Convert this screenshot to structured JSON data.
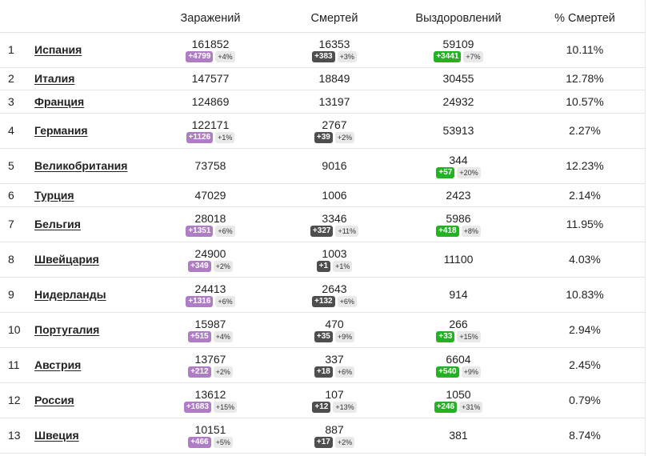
{
  "header": {
    "cases": "Заражений",
    "deaths": "Смертей",
    "recovered": "Выздоровлений",
    "pct": "% Смертей"
  },
  "rows": [
    {
      "rank": "1",
      "country": "Испания",
      "cases": "161852",
      "cases_new": "+4799",
      "cases_pct": "+4%",
      "deaths": "16353",
      "deaths_new": "+383",
      "deaths_pct": "+3%",
      "rec": "59109",
      "rec_new": "+3441",
      "rec_pct": "+7%",
      "pct": "10.11%"
    },
    {
      "rank": "2",
      "country": "Италия",
      "cases": "147577",
      "deaths": "18849",
      "rec": "30455",
      "pct": "12.78%"
    },
    {
      "rank": "3",
      "country": "Франция",
      "cases": "124869",
      "deaths": "13197",
      "rec": "24932",
      "pct": "10.57%"
    },
    {
      "rank": "4",
      "country": "Германия",
      "cases": "122171",
      "cases_new": "+1126",
      "cases_pct": "+1%",
      "deaths": "2767",
      "deaths_new": "+39",
      "deaths_pct": "+2%",
      "rec": "53913",
      "pct": "2.27%"
    },
    {
      "rank": "5",
      "country": "Великобритания",
      "cases": "73758",
      "deaths": "9016",
      "rec": "344",
      "rec_new": "+57",
      "rec_pct": "+20%",
      "pct": "12.23%"
    },
    {
      "rank": "6",
      "country": "Турция",
      "cases": "47029",
      "deaths": "1006",
      "rec": "2423",
      "pct": "2.14%"
    },
    {
      "rank": "7",
      "country": "Бельгия",
      "cases": "28018",
      "cases_new": "+1351",
      "cases_pct": "+6%",
      "deaths": "3346",
      "deaths_new": "+327",
      "deaths_pct": "+11%",
      "rec": "5986",
      "rec_new": "+418",
      "rec_pct": "+8%",
      "pct": "11.95%"
    },
    {
      "rank": "8",
      "country": "Швейцария",
      "cases": "24900",
      "cases_new": "+349",
      "cases_pct": "+2%",
      "deaths": "1003",
      "deaths_new": "+1",
      "deaths_pct": "+1%",
      "rec": "11100",
      "pct": "4.03%"
    },
    {
      "rank": "9",
      "country": "Нидерланды",
      "cases": "24413",
      "cases_new": "+1316",
      "cases_pct": "+6%",
      "deaths": "2643",
      "deaths_new": "+132",
      "deaths_pct": "+6%",
      "rec": "914",
      "pct": "10.83%"
    },
    {
      "rank": "10",
      "country": "Португалия",
      "cases": "15987",
      "cases_new": "+515",
      "cases_pct": "+4%",
      "deaths": "470",
      "deaths_new": "+35",
      "deaths_pct": "+9%",
      "rec": "266",
      "rec_new": "+33",
      "rec_pct": "+15%",
      "pct": "2.94%"
    },
    {
      "rank": "11",
      "country": "Австрия",
      "cases": "13767",
      "cases_new": "+212",
      "cases_pct": "+2%",
      "deaths": "337",
      "deaths_new": "+18",
      "deaths_pct": "+6%",
      "rec": "6604",
      "rec_new": "+540",
      "rec_pct": "+9%",
      "pct": "2.45%"
    },
    {
      "rank": "12",
      "country": "Россия",
      "cases": "13612",
      "cases_new": "+1683",
      "cases_pct": "+15%",
      "deaths": "107",
      "deaths_new": "+12",
      "deaths_pct": "+13%",
      "rec": "1050",
      "rec_new": "+246",
      "rec_pct": "+31%",
      "pct": "0.79%"
    },
    {
      "rank": "13",
      "country": "Швеция",
      "cases": "10151",
      "cases_new": "+466",
      "cases_pct": "+5%",
      "deaths": "887",
      "deaths_new": "+17",
      "deaths_pct": "+2%",
      "rec": "381",
      "pct": "8.74%"
    }
  ],
  "colors": {
    "cases_badge": "#b07cc6",
    "deaths_badge": "#4e4e4e",
    "recovered_badge": "#23b223",
    "pct_badge": "#e9e9e9"
  }
}
